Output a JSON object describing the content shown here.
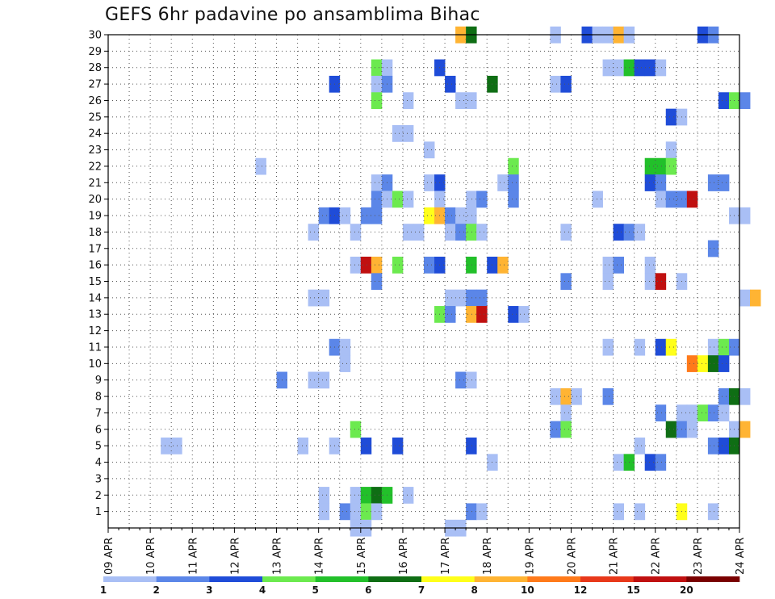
{
  "chart_data": {
    "type": "heatmap",
    "title": "GEFS 6hr padavine po ansamblima Bihac",
    "xlabel": "",
    "ylabel": "",
    "x_ticks": [
      "09 APR",
      "10 APR",
      "11 APR",
      "12 APR",
      "13 APR",
      "14 APR",
      "15 APR",
      "16 APR",
      "17 APR",
      "18 APR",
      "19 APR",
      "20 APR",
      "21 APR",
      "22 APR",
      "23 APR",
      "24 APR"
    ],
    "y_range": [
      1,
      30
    ],
    "grid": "dotted",
    "colorbar": {
      "labels": [
        "1",
        "2",
        "3",
        "4",
        "5",
        "6",
        "7",
        "8",
        "10",
        "12",
        "15",
        "20"
      ],
      "colors": [
        "#a9bff5",
        "#5b86e8",
        "#1f4cd8",
        "#6cea4f",
        "#22c02a",
        "#0f6e14",
        "#ffff1a",
        "#ffb433",
        "#ff7a1a",
        "#e8381a",
        "#c01010",
        "#7a0000"
      ]
    },
    "cells": [
      {
        "member": 30,
        "time": "17 APR 06",
        "level": 8
      },
      {
        "member": 30,
        "time": "17 APR 12",
        "level": 6
      },
      {
        "member": 30,
        "time": "19 APR 12",
        "level": 1
      },
      {
        "member": 30,
        "time": "20 APR 06",
        "level": 3
      },
      {
        "member": 30,
        "time": "20 APR 12",
        "level": 1
      },
      {
        "member": 30,
        "time": "20 APR 18",
        "level": 1
      },
      {
        "member": 30,
        "time": "21 APR 00",
        "level": 8
      },
      {
        "member": 30,
        "time": "21 APR 06",
        "level": 1
      },
      {
        "member": 30,
        "time": "23 APR 00",
        "level": 3
      },
      {
        "member": 30,
        "time": "23 APR 06",
        "level": 2
      },
      {
        "member": 28,
        "time": "15 APR 06",
        "level": 4
      },
      {
        "member": 28,
        "time": "15 APR 12",
        "level": 1
      },
      {
        "member": 28,
        "time": "16 APR 18",
        "level": 3
      },
      {
        "member": 28,
        "time": "20 APR 18",
        "level": 1
      },
      {
        "member": 28,
        "time": "21 APR 00",
        "level": 1
      },
      {
        "member": 28,
        "time": "21 APR 06",
        "level": 5
      },
      {
        "member": 28,
        "time": "21 APR 12",
        "level": 3
      },
      {
        "member": 28,
        "time": "21 APR 18",
        "level": 3
      },
      {
        "member": 28,
        "time": "22 APR 00",
        "level": 1
      },
      {
        "member": 27,
        "time": "14 APR 06",
        "level": 3
      },
      {
        "member": 27,
        "time": "15 APR 06",
        "level": 1
      },
      {
        "member": 27,
        "time": "15 APR 12",
        "level": 2
      },
      {
        "member": 27,
        "time": "17 APR 00",
        "level": 3
      },
      {
        "member": 27,
        "time": "18 APR 00",
        "level": 6
      },
      {
        "member": 27,
        "time": "19 APR 12",
        "level": 1
      },
      {
        "member": 27,
        "time": "19 APR 18",
        "level": 3
      },
      {
        "member": 26,
        "time": "15 APR 06",
        "level": 4
      },
      {
        "member": 26,
        "time": "16 APR 00",
        "level": 1
      },
      {
        "member": 26,
        "time": "17 APR 06",
        "level": 1
      },
      {
        "member": 26,
        "time": "17 APR 12",
        "level": 1
      },
      {
        "member": 26,
        "time": "23 APR 12",
        "level": 3
      },
      {
        "member": 26,
        "time": "23 APR 18",
        "level": 4
      },
      {
        "member": 26,
        "time": "24 APR 00",
        "level": 2
      },
      {
        "member": 25,
        "time": "22 APR 06",
        "level": 3
      },
      {
        "member": 25,
        "time": "22 APR 12",
        "level": 1
      },
      {
        "member": 24,
        "time": "15 APR 18",
        "level": 1
      },
      {
        "member": 24,
        "time": "16 APR 00",
        "level": 1
      },
      {
        "member": 23,
        "time": "16 APR 12",
        "level": 1
      },
      {
        "member": 23,
        "time": "22 APR 06",
        "level": 1
      },
      {
        "member": 22,
        "time": "12 APR 12",
        "level": 1
      },
      {
        "member": 22,
        "time": "18 APR 12",
        "level": 4
      },
      {
        "member": 22,
        "time": "21 APR 18",
        "level": 5
      },
      {
        "member": 22,
        "time": "22 APR 00",
        "level": 5
      },
      {
        "member": 22,
        "time": "22 APR 06",
        "level": 4
      },
      {
        "member": 21,
        "time": "15 APR 06",
        "level": 1
      },
      {
        "member": 21,
        "time": "15 APR 12",
        "level": 2
      },
      {
        "member": 21,
        "time": "16 APR 12",
        "level": 1
      },
      {
        "member": 21,
        "time": "16 APR 18",
        "level": 3
      },
      {
        "member": 21,
        "time": "18 APR 06",
        "level": 1
      },
      {
        "member": 21,
        "time": "18 APR 12",
        "level": 2
      },
      {
        "member": 21,
        "time": "21 APR 18",
        "level": 3
      },
      {
        "member": 21,
        "time": "22 APR 00",
        "level": 2
      },
      {
        "member": 21,
        "time": "23 APR 06",
        "level": 2
      },
      {
        "member": 21,
        "time": "23 APR 12",
        "level": 2
      },
      {
        "member": 20,
        "time": "15 APR 06",
        "level": 2
      },
      {
        "member": 20,
        "time": "15 APR 12",
        "level": 1
      },
      {
        "member": 20,
        "time": "15 APR 18",
        "level": 4
      },
      {
        "member": 20,
        "time": "16 APR 00",
        "level": 1
      },
      {
        "member": 20,
        "time": "16 APR 18",
        "level": 1
      },
      {
        "member": 20,
        "time": "17 APR 12",
        "level": 1
      },
      {
        "member": 20,
        "time": "17 APR 18",
        "level": 2
      },
      {
        "member": 20,
        "time": "18 APR 12",
        "level": 2
      },
      {
        "member": 20,
        "time": "20 APR 12",
        "level": 1
      },
      {
        "member": 20,
        "time": "22 APR 00",
        "level": 1
      },
      {
        "member": 20,
        "time": "22 APR 06",
        "level": 2
      },
      {
        "member": 20,
        "time": "22 APR 12",
        "level": 2
      },
      {
        "member": 20,
        "time": "22 APR 18",
        "level": 11
      },
      {
        "member": 19,
        "time": "14 APR 00",
        "level": 2
      },
      {
        "member": 19,
        "time": "14 APR 06",
        "level": 3
      },
      {
        "member": 19,
        "time": "14 APR 12",
        "level": 1
      },
      {
        "member": 19,
        "time": "15 APR 00",
        "level": 2
      },
      {
        "member": 19,
        "time": "15 APR 06",
        "level": 2
      },
      {
        "member": 19,
        "time": "16 APR 12",
        "level": 7
      },
      {
        "member": 19,
        "time": "16 APR 18",
        "level": 8
      },
      {
        "member": 19,
        "time": "17 APR 00",
        "level": 2
      },
      {
        "member": 19,
        "time": "17 APR 06",
        "level": 1
      },
      {
        "member": 19,
        "time": "17 APR 12",
        "level": 1
      },
      {
        "member": 19,
        "time": "23 APR 18",
        "level": 1
      },
      {
        "member": 19,
        "time": "24 APR 00",
        "level": 1
      },
      {
        "member": 18,
        "time": "13 APR 18",
        "level": 1
      },
      {
        "member": 18,
        "time": "14 APR 18",
        "level": 1
      },
      {
        "member": 18,
        "time": "16 APR 00",
        "level": 1
      },
      {
        "member": 18,
        "time": "16 APR 06",
        "level": 1
      },
      {
        "member": 18,
        "time": "17 APR 00",
        "level": 1
      },
      {
        "member": 18,
        "time": "17 APR 06",
        "level": 2
      },
      {
        "member": 18,
        "time": "17 APR 12",
        "level": 4
      },
      {
        "member": 18,
        "time": "17 APR 18",
        "level": 1
      },
      {
        "member": 18,
        "time": "19 APR 18",
        "level": 1
      },
      {
        "member": 18,
        "time": "21 APR 00",
        "level": 3
      },
      {
        "member": 18,
        "time": "21 APR 06",
        "level": 2
      },
      {
        "member": 18,
        "time": "21 APR 12",
        "level": 1
      },
      {
        "member": 17,
        "time": "23 APR 06",
        "level": 2
      },
      {
        "member": 16,
        "time": "14 APR 18",
        "level": 1
      },
      {
        "member": 16,
        "time": "15 APR 00",
        "level": 11
      },
      {
        "member": 16,
        "time": "15 APR 06",
        "level": 8
      },
      {
        "member": 16,
        "time": "15 APR 18",
        "level": 4
      },
      {
        "member": 16,
        "time": "16 APR 12",
        "level": 2
      },
      {
        "member": 16,
        "time": "16 APR 18",
        "level": 3
      },
      {
        "member": 16,
        "time": "17 APR 12",
        "level": 5
      },
      {
        "member": 16,
        "time": "18 APR 00",
        "level": 3
      },
      {
        "member": 16,
        "time": "18 APR 06",
        "level": 8
      },
      {
        "member": 16,
        "time": "20 APR 18",
        "level": 1
      },
      {
        "member": 16,
        "time": "21 APR 00",
        "level": 2
      },
      {
        "member": 16,
        "time": "21 APR 18",
        "level": 1
      },
      {
        "member": 15,
        "time": "15 APR 06",
        "level": 2
      },
      {
        "member": 15,
        "time": "19 APR 18",
        "level": 2
      },
      {
        "member": 15,
        "time": "20 APR 18",
        "level": 1
      },
      {
        "member": 15,
        "time": "21 APR 18",
        "level": 1
      },
      {
        "member": 15,
        "time": "22 APR 00",
        "level": 11
      },
      {
        "member": 15,
        "time": "22 APR 12",
        "level": 1
      },
      {
        "member": 14,
        "time": "13 APR 18",
        "level": 1
      },
      {
        "member": 14,
        "time": "14 APR 00",
        "level": 1
      },
      {
        "member": 14,
        "time": "17 APR 00",
        "level": 1
      },
      {
        "member": 14,
        "time": "17 APR 06",
        "level": 1
      },
      {
        "member": 14,
        "time": "17 APR 12",
        "level": 2
      },
      {
        "member": 14,
        "time": "17 APR 18",
        "level": 2
      },
      {
        "member": 14,
        "time": "24 APR 00",
        "level": 1
      },
      {
        "member": 14,
        "time": "24 APR 06",
        "level": 8
      },
      {
        "member": 13,
        "time": "16 APR 18",
        "level": 4
      },
      {
        "member": 13,
        "time": "17 APR 00",
        "level": 2
      },
      {
        "member": 13,
        "time": "17 APR 12",
        "level": 8
      },
      {
        "member": 13,
        "time": "17 APR 18",
        "level": 11
      },
      {
        "member": 13,
        "time": "18 APR 12",
        "level": 3
      },
      {
        "member": 13,
        "time": "18 APR 18",
        "level": 1
      },
      {
        "member": 11,
        "time": "14 APR 06",
        "level": 2
      },
      {
        "member": 11,
        "time": "14 APR 12",
        "level": 1
      },
      {
        "member": 11,
        "time": "20 APR 18",
        "level": 1
      },
      {
        "member": 11,
        "time": "21 APR 12",
        "level": 1
      },
      {
        "member": 11,
        "time": "22 APR 00",
        "level": 3
      },
      {
        "member": 11,
        "time": "22 APR 06",
        "level": 7
      },
      {
        "member": 11,
        "time": "23 APR 06",
        "level": 1
      },
      {
        "member": 11,
        "time": "23 APR 12",
        "level": 4
      },
      {
        "member": 11,
        "time": "23 APR 18",
        "level": 2
      },
      {
        "member": 10,
        "time": "14 APR 12",
        "level": 1
      },
      {
        "member": 10,
        "time": "22 APR 18",
        "level": 9
      },
      {
        "member": 10,
        "time": "23 APR 00",
        "level": 7
      },
      {
        "member": 10,
        "time": "23 APR 06",
        "level": 6
      },
      {
        "member": 10,
        "time": "23 APR 12",
        "level": 3
      },
      {
        "member": 9,
        "time": "13 APR 00",
        "level": 2
      },
      {
        "member": 9,
        "time": "13 APR 18",
        "level": 1
      },
      {
        "member": 9,
        "time": "14 APR 00",
        "level": 1
      },
      {
        "member": 9,
        "time": "17 APR 06",
        "level": 2
      },
      {
        "member": 9,
        "time": "17 APR 12",
        "level": 1
      },
      {
        "member": 8,
        "time": "19 APR 12",
        "level": 1
      },
      {
        "member": 8,
        "time": "19 APR 18",
        "level": 8
      },
      {
        "member": 8,
        "time": "20 APR 00",
        "level": 1
      },
      {
        "member": 8,
        "time": "20 APR 18",
        "level": 2
      },
      {
        "member": 8,
        "time": "23 APR 12",
        "level": 2
      },
      {
        "member": 8,
        "time": "23 APR 18",
        "level": 6
      },
      {
        "member": 8,
        "time": "24 APR 00",
        "level": 1
      },
      {
        "member": 7,
        "time": "19 APR 18",
        "level": 1
      },
      {
        "member": 7,
        "time": "22 APR 00",
        "level": 2
      },
      {
        "member": 7,
        "time": "22 APR 12",
        "level": 1
      },
      {
        "member": 7,
        "time": "22 APR 18",
        "level": 1
      },
      {
        "member": 7,
        "time": "23 APR 00",
        "level": 4
      },
      {
        "member": 7,
        "time": "23 APR 06",
        "level": 2
      },
      {
        "member": 7,
        "time": "23 APR 12",
        "level": 1
      },
      {
        "member": 6,
        "time": "14 APR 18",
        "level": 4
      },
      {
        "member": 6,
        "time": "19 APR 12",
        "level": 2
      },
      {
        "member": 6,
        "time": "19 APR 18",
        "level": 4
      },
      {
        "member": 6,
        "time": "22 APR 06",
        "level": 6
      },
      {
        "member": 6,
        "time": "22 APR 12",
        "level": 2
      },
      {
        "member": 6,
        "time": "22 APR 18",
        "level": 1
      },
      {
        "member": 6,
        "time": "23 APR 18",
        "level": 1
      },
      {
        "member": 6,
        "time": "24 APR 00",
        "level": 8
      },
      {
        "member": 5,
        "time": "10 APR 06",
        "level": 1
      },
      {
        "member": 5,
        "time": "10 APR 12",
        "level": 1
      },
      {
        "member": 5,
        "time": "13 APR 12",
        "level": 1
      },
      {
        "member": 5,
        "time": "14 APR 06",
        "level": 1
      },
      {
        "member": 5,
        "time": "15 APR 00",
        "level": 3
      },
      {
        "member": 5,
        "time": "15 APR 18",
        "level": 3
      },
      {
        "member": 5,
        "time": "17 APR 12",
        "level": 3
      },
      {
        "member": 5,
        "time": "21 APR 12",
        "level": 1
      },
      {
        "member": 5,
        "time": "23 APR 06",
        "level": 2
      },
      {
        "member": 5,
        "time": "23 APR 12",
        "level": 3
      },
      {
        "member": 5,
        "time": "23 APR 18",
        "level": 6
      },
      {
        "member": 4,
        "time": "18 APR 00",
        "level": 1
      },
      {
        "member": 4,
        "time": "21 APR 00",
        "level": 1
      },
      {
        "member": 4,
        "time": "21 APR 06",
        "level": 5
      },
      {
        "member": 4,
        "time": "21 APR 18",
        "level": 3
      },
      {
        "member": 4,
        "time": "22 APR 00",
        "level": 2
      },
      {
        "member": 2,
        "time": "14 APR 00",
        "level": 1
      },
      {
        "member": 2,
        "time": "14 APR 18",
        "level": 1
      },
      {
        "member": 2,
        "time": "15 APR 00",
        "level": 5
      },
      {
        "member": 2,
        "time": "15 APR 06",
        "level": 6
      },
      {
        "member": 2,
        "time": "15 APR 12",
        "level": 5
      },
      {
        "member": 2,
        "time": "16 APR 00",
        "level": 1
      },
      {
        "member": 1,
        "time": "14 APR 00",
        "level": 1
      },
      {
        "member": 1,
        "time": "14 APR 12",
        "level": 2
      },
      {
        "member": 1,
        "time": "14 APR 18",
        "level": 1
      },
      {
        "member": 1,
        "time": "15 APR 00",
        "level": 4
      },
      {
        "member": 1,
        "time": "15 APR 06",
        "level": 1
      },
      {
        "member": 1,
        "time": "17 APR 12",
        "level": 2
      },
      {
        "member": 1,
        "time": "17 APR 18",
        "level": 1
      },
      {
        "member": 1,
        "time": "21 APR 00",
        "level": 1
      },
      {
        "member": 1,
        "time": "21 APR 12",
        "level": 1
      },
      {
        "member": 1,
        "time": "22 APR 12",
        "level": 7
      },
      {
        "member": 1,
        "time": "23 APR 06",
        "level": 1
      },
      {
        "member": 0,
        "time": "14 APR 18",
        "level": 1
      },
      {
        "member": 0,
        "time": "15 APR 00",
        "level": 1
      },
      {
        "member": 0,
        "time": "17 APR 00",
        "level": 1
      },
      {
        "member": 0,
        "time": "17 APR 06",
        "level": 1
      }
    ]
  }
}
